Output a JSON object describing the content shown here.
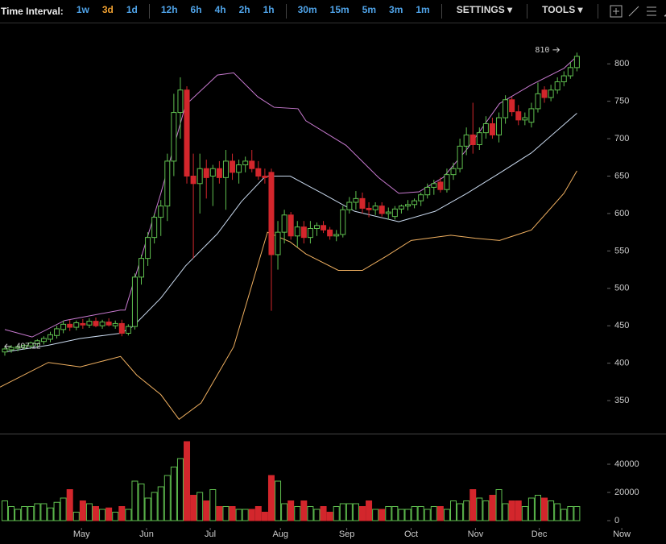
{
  "toolbar": {
    "label": "Time Interval:",
    "interval_groups": [
      [
        "1w",
        "3d",
        "1d"
      ],
      [
        "12h",
        "6h",
        "4h",
        "2h",
        "1h"
      ],
      [
        "30m",
        "15m",
        "5m",
        "3m",
        "1m"
      ]
    ],
    "active": [
      0,
      1
    ],
    "menus": [
      "SETTINGS",
      "TOOLS"
    ]
  },
  "chart_data": [
    {
      "type": "candlestick",
      "up_color": "#5fbf4f",
      "down_color": "#d3262c",
      "ylim": [
        307,
        853
      ],
      "yticks": [
        350,
        400,
        450,
        500,
        550,
        600,
        650,
        700,
        750,
        800
      ],
      "xlim": [
        -0.74,
        101.7
      ],
      "high_label": "810",
      "start_label": "407.22",
      "candles": [
        [
          415,
          422,
          410,
          419
        ],
        [
          418,
          424,
          414,
          421
        ],
        [
          420,
          425,
          416,
          422
        ],
        [
          421,
          426,
          418,
          424
        ],
        [
          423,
          429,
          419,
          427
        ],
        [
          426,
          432,
          422,
          430
        ],
        [
          429,
          436,
          425,
          433
        ],
        [
          432,
          442,
          428,
          438
        ],
        [
          437,
          450,
          433,
          446
        ],
        [
          445,
          457,
          440,
          452
        ],
        [
          452,
          458,
          443,
          448
        ],
        [
          448,
          457,
          444,
          454
        ],
        [
          453,
          459,
          446,
          451
        ],
        [
          451,
          460,
          447,
          456
        ],
        [
          456,
          461,
          448,
          450
        ],
        [
          450,
          458,
          446,
          455
        ],
        [
          455,
          460,
          449,
          451
        ],
        [
          450,
          457,
          446,
          453
        ],
        [
          453,
          458,
          436,
          440
        ],
        [
          440,
          452,
          437,
          449
        ],
        [
          449,
          520,
          445,
          515
        ],
        [
          515,
          545,
          505,
          540
        ],
        [
          540,
          575,
          530,
          568
        ],
        [
          568,
          600,
          560,
          595
        ],
        [
          595,
          618,
          570,
          610
        ],
        [
          610,
          680,
          590,
          670
        ],
        [
          670,
          760,
          650,
          735
        ],
        [
          735,
          782,
          700,
          765
        ],
        [
          765,
          770,
          640,
          650
        ],
        [
          650,
          680,
          540,
          640
        ],
        [
          640,
          680,
          600,
          660
        ],
        [
          660,
          672,
          620,
          648
        ],
        [
          650,
          665,
          610,
          660
        ],
        [
          660,
          670,
          640,
          648
        ],
        [
          648,
          685,
          605,
          670
        ],
        [
          670,
          680,
          645,
          655
        ],
        [
          655,
          672,
          640,
          665
        ],
        [
          665,
          676,
          655,
          670
        ],
        [
          670,
          685,
          655,
          660
        ],
        [
          660,
          670,
          645,
          650
        ],
        [
          650,
          660,
          640,
          648
        ],
        [
          655,
          660,
          470,
          545
        ],
        [
          545,
          590,
          525,
          575
        ],
        [
          575,
          605,
          560,
          598
        ],
        [
          598,
          602,
          565,
          570
        ],
        [
          570,
          590,
          555,
          582
        ],
        [
          582,
          590,
          560,
          568
        ],
        [
          568,
          590,
          560,
          580
        ],
        [
          580,
          588,
          570,
          584
        ],
        [
          584,
          590,
          574,
          578
        ],
        [
          578,
          582,
          565,
          570
        ],
        [
          570,
          578,
          563,
          572
        ],
        [
          572,
          610,
          568,
          605
        ],
        [
          605,
          622,
          600,
          615
        ],
        [
          615,
          630,
          605,
          620
        ],
        [
          620,
          628,
          600,
          607
        ],
        [
          607,
          615,
          595,
          605
        ],
        [
          605,
          615,
          598,
          610
        ],
        [
          610,
          615,
          596,
          600
        ],
        [
          600,
          608,
          592,
          602
        ],
        [
          596,
          610,
          592,
          606
        ],
        [
          606,
          612,
          600,
          610
        ],
        [
          610,
          618,
          604,
          612
        ],
        [
          612,
          620,
          607,
          617
        ],
        [
          617,
          628,
          610,
          625
        ],
        [
          625,
          640,
          620,
          635
        ],
        [
          635,
          645,
          625,
          640
        ],
        [
          642,
          648,
          628,
          632
        ],
        [
          632,
          660,
          628,
          652
        ],
        [
          652,
          668,
          645,
          660
        ],
        [
          660,
          700,
          655,
          690
        ],
        [
          690,
          715,
          678,
          705
        ],
        [
          705,
          748,
          680,
          692
        ],
        [
          692,
          715,
          685,
          708
        ],
        [
          708,
          730,
          700,
          720
        ],
        [
          720,
          728,
          700,
          705
        ],
        [
          705,
          735,
          695,
          728
        ],
        [
          728,
          758,
          720,
          752
        ],
        [
          752,
          756,
          730,
          736
        ],
        [
          736,
          745,
          718,
          725
        ],
        [
          725,
          735,
          718,
          728
        ],
        [
          722,
          748,
          715,
          740
        ],
        [
          740,
          775,
          735,
          760
        ],
        [
          765,
          770,
          748,
          755
        ],
        [
          755,
          772,
          750,
          765
        ],
        [
          765,
          782,
          760,
          776
        ],
        [
          776,
          790,
          770,
          784
        ],
        [
          784,
          802,
          780,
          795
        ],
        [
          795,
          815,
          790,
          810
        ]
      ],
      "bands": [
        {
          "color": "#c87ad0",
          "x": [
            0,
            4.2,
            9.2,
            17.8,
            18.5,
            24,
            27.8,
            32.7,
            35.2,
            38.9,
            41.4,
            45.1,
            46.3,
            52.5,
            57.5,
            60.6,
            63.7,
            67.4,
            71.1,
            76.1,
            81,
            86,
            88
          ],
          "values": [
            445,
            435,
            457,
            471,
            471,
            627,
            745,
            785,
            788,
            756,
            742,
            740,
            724,
            691,
            648,
            627,
            629,
            648,
            686,
            747,
            772,
            794,
            810
          ]
        },
        {
          "color": "#c9d9ee",
          "x": [
            0,
            6.7,
            11.6,
            17.8,
            19.7,
            24,
            27.8,
            32.7,
            36.4,
            40.1,
            43.9,
            48.8,
            53.8,
            60.6,
            66.2,
            71.1,
            76.1,
            81,
            88
          ],
          "values": [
            415,
            424,
            433,
            440,
            449,
            487,
            530,
            573,
            616,
            650,
            650,
            627,
            603,
            589,
            603,
            627,
            654,
            681,
            734
          ]
        },
        {
          "color": "#f0b060",
          "x": [
            -0.74,
            6.7,
            11.6,
            17.8,
            20.3,
            24,
            26.8,
            30.2,
            35.2,
            40.4,
            43.9,
            46.3,
            51.3,
            55,
            58.7,
            62.5,
            68.6,
            72.4,
            76.1,
            81,
            86,
            88
          ],
          "values": [
            368,
            401,
            395,
            409,
            384,
            358,
            325,
            347,
            422,
            575,
            562,
            546,
            524,
            524,
            543,
            564,
            571,
            567,
            564,
            578,
            627,
            657
          ]
        }
      ]
    },
    {
      "type": "bar",
      "ylim": [
        -5143,
        60571
      ],
      "yticks": [
        0,
        20000,
        40000
      ],
      "xlim": [
        -0.74,
        101.7
      ],
      "xticks": [
        {
          "value": 11.8,
          "label": "May"
        },
        {
          "value": 21.8,
          "label": "Jun"
        },
        {
          "value": 31.6,
          "label": "Jul"
        },
        {
          "value": 42.4,
          "label": "Aug"
        },
        {
          "value": 52.6,
          "label": "Sep"
        },
        {
          "value": 62.5,
          "label": "Oct"
        },
        {
          "value": 72.4,
          "label": "Nov"
        },
        {
          "value": 82.2,
          "label": "Dec"
        },
        {
          "value": 94.9,
          "label": "Now"
        }
      ],
      "values": [
        14000,
        10000,
        8000,
        10000,
        10000,
        12000,
        12000,
        9000,
        13000,
        16000,
        22000,
        6000,
        14000,
        12000,
        10000,
        8000,
        9000,
        6000,
        10000,
        8000,
        28000,
        26000,
        16000,
        20000,
        24000,
        32000,
        38000,
        44000,
        56000,
        18000,
        20000,
        14000,
        22000,
        10000,
        10000,
        10000,
        8000,
        8000,
        8000,
        10000,
        6000,
        32000,
        28000,
        12000,
        14000,
        10000,
        14000,
        10000,
        8000,
        10000,
        6000,
        10000,
        12000,
        12000,
        12000,
        10000,
        14000,
        8000,
        8000,
        10000,
        10000,
        8000,
        8000,
        10000,
        10000,
        8000,
        10000,
        10000,
        8000,
        14000,
        12000,
        14000,
        22000,
        16000,
        14000,
        18000,
        22000,
        12000,
        14000,
        14000,
        10000,
        16000,
        18000,
        16000,
        14000,
        12000,
        8000,
        10000,
        10000
      ]
    }
  ]
}
